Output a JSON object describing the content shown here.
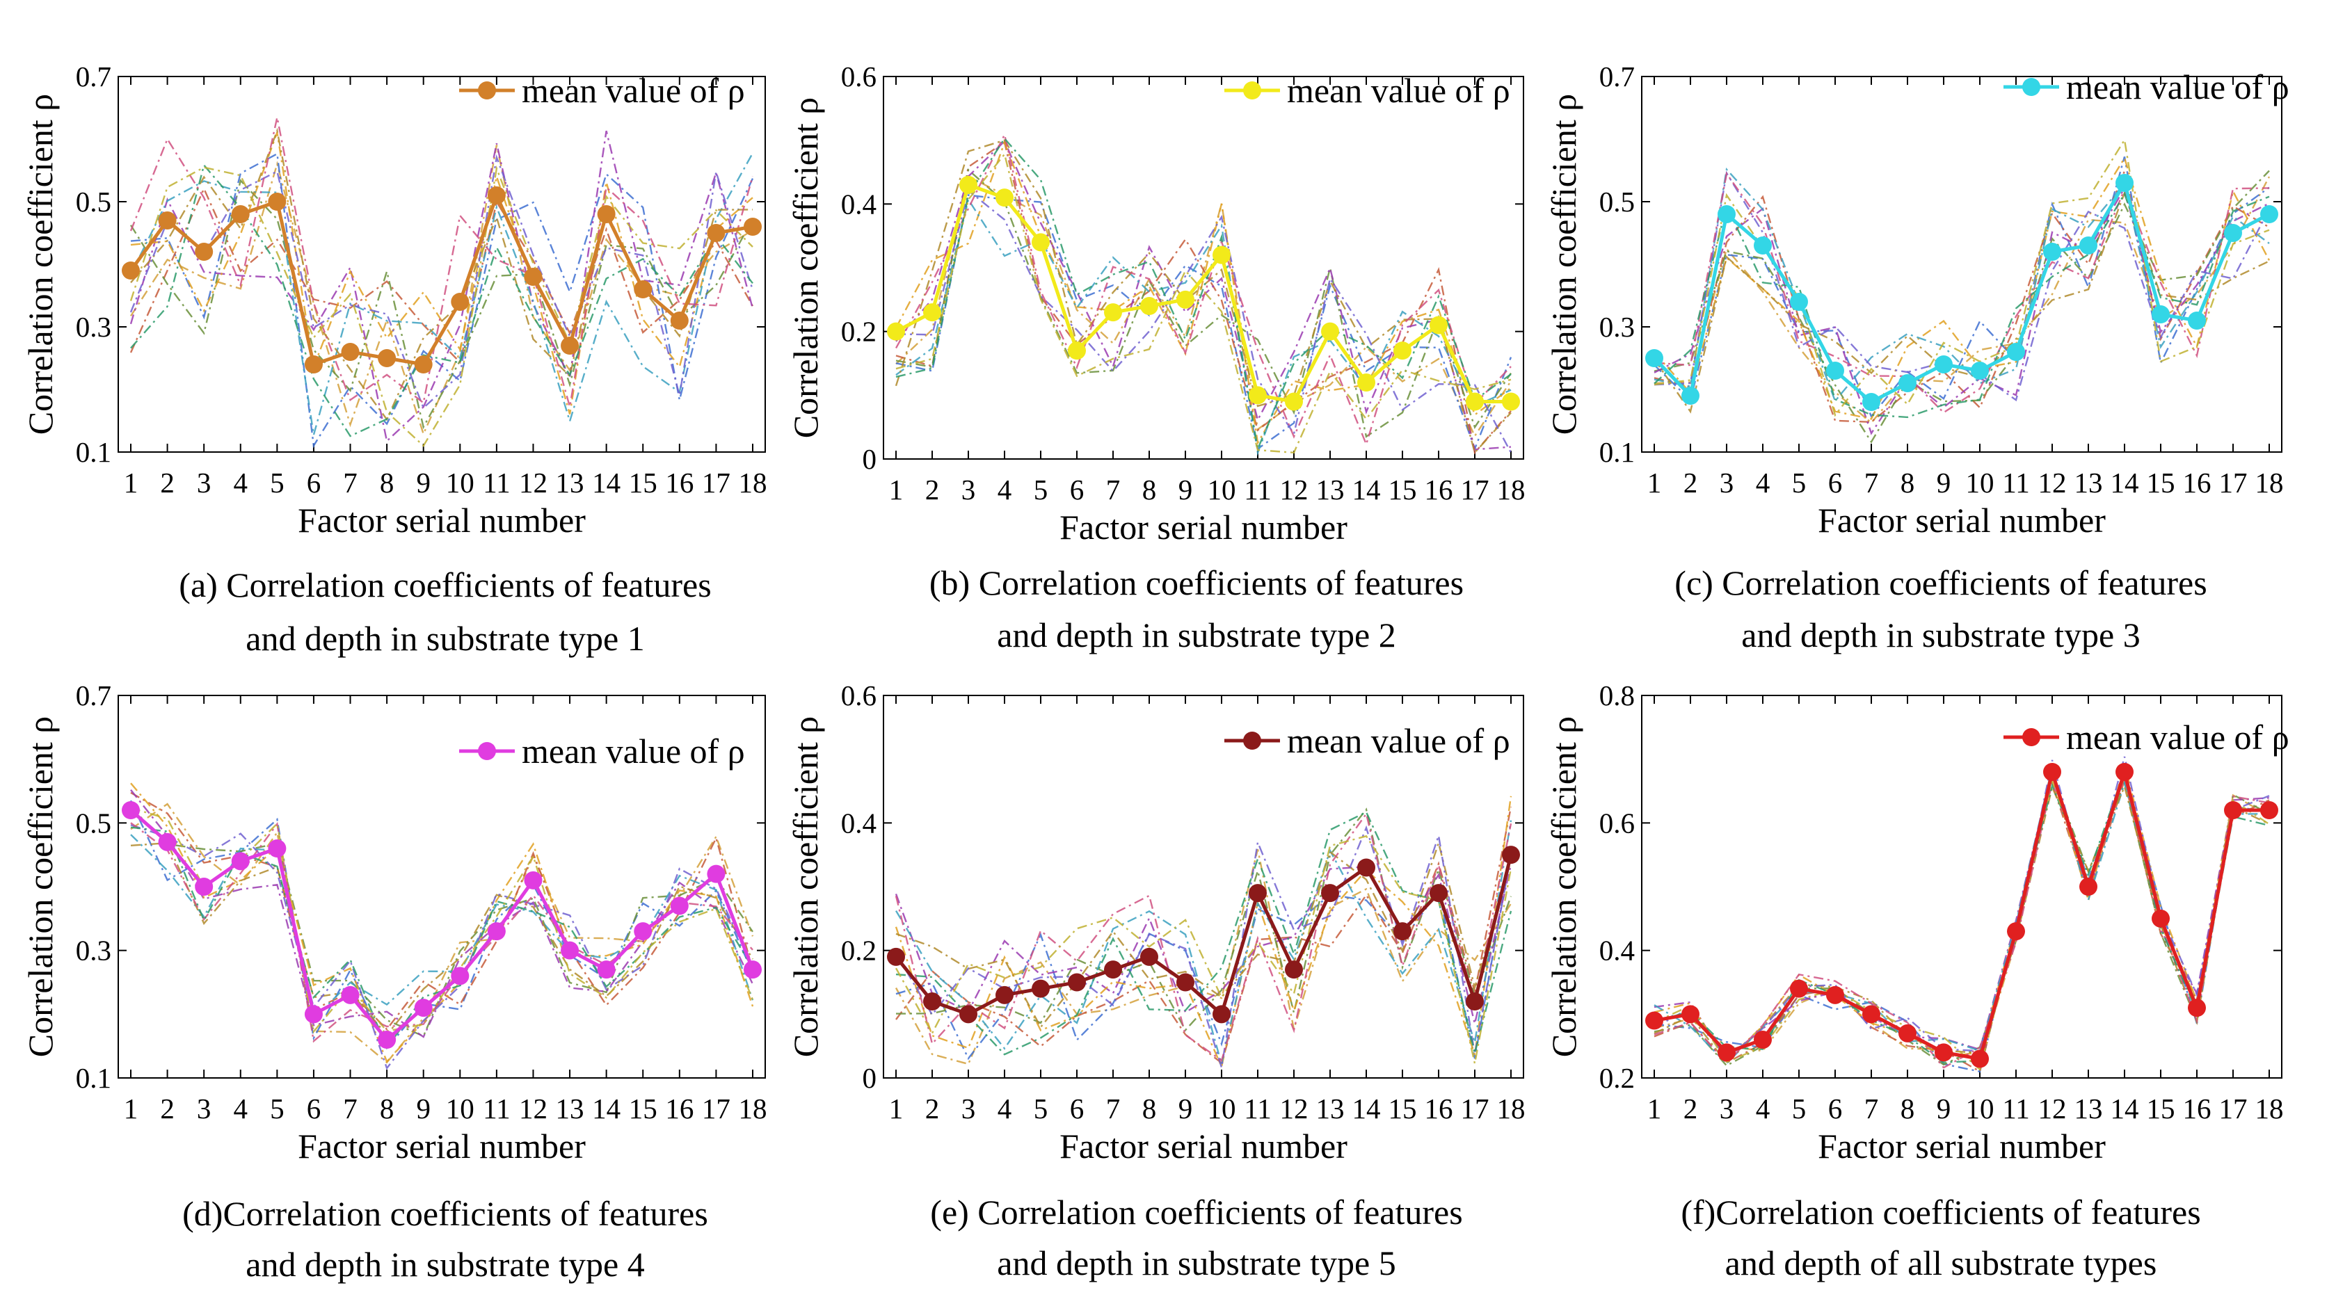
{
  "figure": {
    "xlabel": "Factor serial number",
    "ylabel": "Correlation coefficient ρ"
  },
  "chart_data": [
    {
      "id": "a",
      "type": "line",
      "caption": [
        "(a)  Correlation coefficients of  features",
        "and depth in substrate type 1"
      ],
      "xlabel": "Factor serial number",
      "ylabel": "Correlation coefficient ρ",
      "ylim": [
        0.1,
        0.7
      ],
      "yticks": [
        0.1,
        0.3,
        0.5,
        0.7
      ],
      "yticklabels": [
        "0.1",
        "0.3",
        "0.5",
        "0.7"
      ],
      "x": [
        1,
        2,
        3,
        4,
        5,
        6,
        7,
        8,
        9,
        10,
        11,
        12,
        13,
        14,
        15,
        16,
        17,
        18
      ],
      "legend": "mean value of ρ",
      "mean_color": "#d2802a",
      "mean": [
        0.39,
        0.47,
        0.42,
        0.48,
        0.5,
        0.24,
        0.26,
        0.25,
        0.24,
        0.34,
        0.51,
        0.38,
        0.27,
        0.48,
        0.36,
        0.31,
        0.45,
        0.46
      ],
      "spread": 0.14,
      "seed": 11
    },
    {
      "id": "b",
      "type": "line",
      "caption": [
        "(b) Correlation coefficients of  features",
        "and depth in substrate type 2"
      ],
      "xlabel": "Factor serial number",
      "ylabel": "Correlation coefficient ρ",
      "ylim": [
        0,
        0.6
      ],
      "yticks": [
        0,
        0.2,
        0.4,
        0.6
      ],
      "yticklabels": [
        "0",
        "0.2",
        "0.4",
        "0.6"
      ],
      "x": [
        1,
        2,
        3,
        4,
        5,
        6,
        7,
        8,
        9,
        10,
        11,
        12,
        13,
        14,
        15,
        16,
        17,
        18
      ],
      "legend": "mean value of ρ",
      "mean_color": "#f2ea1a",
      "mean": [
        0.2,
        0.23,
        0.43,
        0.41,
        0.34,
        0.17,
        0.23,
        0.24,
        0.25,
        0.32,
        0.1,
        0.09,
        0.2,
        0.12,
        0.17,
        0.21,
        0.09,
        0.09
      ],
      "spread": 0.1,
      "seed": 23
    },
    {
      "id": "c",
      "type": "line",
      "caption": [
        "(c) Correlation coefficients of  features",
        "and depth in substrate type 3"
      ],
      "xlabel": "Factor serial number",
      "ylabel": "Correlation coefficient ρ",
      "ylim": [
        0.1,
        0.7
      ],
      "yticks": [
        0.1,
        0.3,
        0.5,
        0.7
      ],
      "yticklabels": [
        "0.1",
        "0.3",
        "0.5",
        "0.7"
      ],
      "x": [
        1,
        2,
        3,
        4,
        5,
        6,
        7,
        8,
        9,
        10,
        11,
        12,
        13,
        14,
        15,
        16,
        17,
        18
      ],
      "legend": "mean value of ρ",
      "mean_color": "#33d6e6",
      "mean": [
        0.25,
        0.19,
        0.48,
        0.43,
        0.34,
        0.23,
        0.18,
        0.21,
        0.24,
        0.23,
        0.26,
        0.42,
        0.43,
        0.53,
        0.32,
        0.31,
        0.45,
        0.48
      ],
      "spread": 0.08,
      "seed": 37
    },
    {
      "id": "d",
      "type": "line",
      "caption": [
        "(d)Correlation coefficients of  features",
        "and depth in substrate type 4"
      ],
      "xlabel": "Factor serial number",
      "ylabel": "Correlation coefficient ρ",
      "ylim": [
        0.1,
        0.7
      ],
      "yticks": [
        0.1,
        0.3,
        0.5,
        0.7
      ],
      "yticklabels": [
        "0.1",
        "0.3",
        "0.5",
        "0.7"
      ],
      "x": [
        1,
        2,
        3,
        4,
        5,
        6,
        7,
        8,
        9,
        10,
        11,
        12,
        13,
        14,
        15,
        16,
        17,
        18
      ],
      "legend": "mean value of ρ",
      "mean_color": "#e03ce0",
      "mean": [
        0.52,
        0.47,
        0.4,
        0.44,
        0.46,
        0.2,
        0.23,
        0.16,
        0.21,
        0.26,
        0.33,
        0.41,
        0.3,
        0.27,
        0.33,
        0.37,
        0.42,
        0.27
      ],
      "spread": 0.06,
      "seed": 41
    },
    {
      "id": "e",
      "type": "line",
      "caption": [
        "(e) Correlation coefficients of  features",
        "and depth in substrate type 5"
      ],
      "xlabel": "Factor serial number",
      "ylabel": "Correlation coefficient ρ",
      "ylim": [
        0,
        0.6
      ],
      "yticks": [
        0,
        0.2,
        0.4,
        0.6
      ],
      "yticklabels": [
        "0",
        "0.2",
        "0.4",
        "0.6"
      ],
      "x": [
        1,
        2,
        3,
        4,
        5,
        6,
        7,
        8,
        9,
        10,
        11,
        12,
        13,
        14,
        15,
        16,
        17,
        18
      ],
      "legend": "mean value of ρ",
      "mean_color": "#8b1a1a",
      "mean": [
        0.19,
        0.12,
        0.1,
        0.13,
        0.14,
        0.15,
        0.17,
        0.19,
        0.15,
        0.1,
        0.29,
        0.17,
        0.29,
        0.33,
        0.23,
        0.29,
        0.12,
        0.35
      ],
      "spread": 0.1,
      "seed": 53
    },
    {
      "id": "f",
      "type": "line",
      "caption": [
        "(f)Correlation coefficients of  features",
        "and depth of all substrate types"
      ],
      "xlabel": "Factor serial number",
      "ylabel": "Correlation coefficient ρ",
      "ylim": [
        0.2,
        0.8
      ],
      "yticks": [
        0.2,
        0.4,
        0.6,
        0.8
      ],
      "yticklabels": [
        "0.2",
        "0.4",
        "0.6",
        "0.8"
      ],
      "x": [
        1,
        2,
        3,
        4,
        5,
        6,
        7,
        8,
        9,
        10,
        11,
        12,
        13,
        14,
        15,
        16,
        17,
        18
      ],
      "legend": "mean value of ρ",
      "mean_color": "#e02020",
      "mean": [
        0.29,
        0.3,
        0.24,
        0.26,
        0.34,
        0.33,
        0.3,
        0.27,
        0.24,
        0.23,
        0.43,
        0.68,
        0.5,
        0.68,
        0.45,
        0.31,
        0.62,
        0.62
      ],
      "spread": 0.025,
      "seed": 67
    }
  ]
}
